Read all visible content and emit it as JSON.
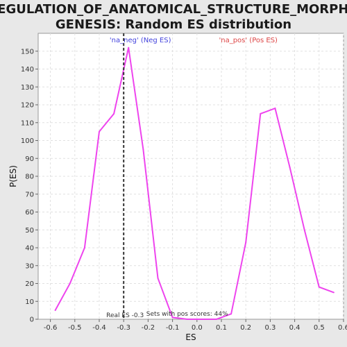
{
  "title_line1": "REGULATION_OF_ANATOMICAL_STRUCTURE_MORPHO",
  "title_line2": "GENESIS: Random ES distribution",
  "colors": {
    "background": "#e8e8e8",
    "plot_background": "#ffffff",
    "curve": "#ee44ee",
    "neg_label": "#4444dd",
    "pos_label": "#dd4444",
    "real_es_line": "#333333",
    "grid": "#e0e0e0"
  },
  "chart_data": {
    "type": "line",
    "xlabel": "ES",
    "ylabel": "P(ES)",
    "xlim": [
      -0.65,
      0.6
    ],
    "ylim": [
      0,
      160
    ],
    "grid": true,
    "xticks": [
      -0.6,
      -0.5,
      -0.4,
      -0.3,
      -0.2,
      -0.1,
      0.0,
      0.1,
      0.2,
      0.3,
      0.4,
      0.5,
      0.6
    ],
    "xtick_labels": [
      "-0.6",
      "-0.5",
      "-0.4",
      "-0.3",
      "-0.2",
      "-0.1",
      "0.0",
      "0.1",
      "0.2",
      "0.3",
      "0.4",
      "0.5",
      "0.6"
    ],
    "yticks": [
      0,
      10,
      20,
      30,
      40,
      50,
      60,
      70,
      80,
      90,
      100,
      110,
      120,
      130,
      140,
      150
    ],
    "ytick_labels": [
      "0",
      "10",
      "20",
      "30",
      "40",
      "50",
      "60",
      "70",
      "80",
      "90",
      "100",
      "110",
      "120",
      "130",
      "140",
      "150"
    ],
    "series": [
      {
        "x": [
          -0.58,
          -0.52,
          -0.46,
          -0.4,
          -0.34,
          -0.28,
          -0.22,
          -0.16,
          -0.1,
          -0.04,
          0.02,
          0.08,
          0.14,
          0.2,
          0.26,
          0.32,
          0.38,
          0.44,
          0.5,
          0.56
        ],
        "y": [
          5,
          20,
          40,
          105,
          115,
          152,
          95,
          23,
          1,
          0,
          0,
          0,
          3,
          43,
          115,
          118,
          85,
          50,
          18,
          15
        ]
      }
    ],
    "real_es": -0.3,
    "annotations": {
      "neg_label": "'na_neg' (Neg ES)",
      "pos_label": "'na_pos' (Pos ES)",
      "real_es_text": "Real ES -0.3",
      "sets_text": "Sets with pos scores: 44%"
    }
  }
}
